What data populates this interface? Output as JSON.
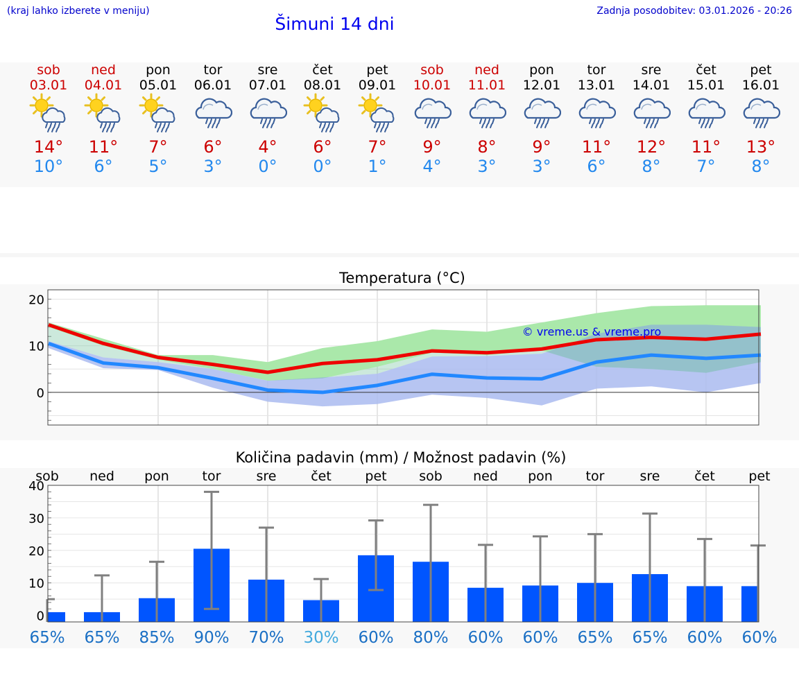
{
  "header": {
    "hint": "(kraj lahko izberete v meniju)",
    "title": "Šimuni 14 dni",
    "updated": "Zadnja posodobitev: 03.01.2026 - 20:26"
  },
  "forecast": [
    {
      "day": "sob",
      "date": "03.01",
      "weekend": true,
      "icon": "sun-cloud-rain-icon",
      "max": "14°",
      "min": "10°"
    },
    {
      "day": "ned",
      "date": "04.01",
      "weekend": true,
      "icon": "sun-cloud-rain-icon",
      "max": "11°",
      "min": "6°"
    },
    {
      "day": "pon",
      "date": "05.01",
      "weekend": false,
      "icon": "sun-cloud-rain-icon",
      "max": "7°",
      "min": "5°"
    },
    {
      "day": "tor",
      "date": "06.01",
      "weekend": false,
      "icon": "cloud-rain-icon",
      "max": "6°",
      "min": "3°"
    },
    {
      "day": "sre",
      "date": "07.01",
      "weekend": false,
      "icon": "cloud-rain-icon",
      "max": "4°",
      "min": "0°"
    },
    {
      "day": "čet",
      "date": "08.01",
      "weekend": false,
      "icon": "sun-cloud-rain-icon",
      "max": "6°",
      "min": "0°"
    },
    {
      "day": "pet",
      "date": "09.01",
      "weekend": false,
      "icon": "sun-cloud-rain-icon",
      "max": "7°",
      "min": "1°"
    },
    {
      "day": "sob",
      "date": "10.01",
      "weekend": true,
      "icon": "cloud-rain-icon",
      "max": "9°",
      "min": "4°"
    },
    {
      "day": "ned",
      "date": "11.01",
      "weekend": true,
      "icon": "cloud-rain-icon",
      "max": "8°",
      "min": "3°"
    },
    {
      "day": "pon",
      "date": "12.01",
      "weekend": false,
      "icon": "cloud-rain-icon",
      "max": "9°",
      "min": "3°"
    },
    {
      "day": "tor",
      "date": "13.01",
      "weekend": false,
      "icon": "cloud-rain-icon",
      "max": "11°",
      "min": "6°"
    },
    {
      "day": "sre",
      "date": "14.01",
      "weekend": false,
      "icon": "cloud-rain-icon",
      "max": "12°",
      "min": "8°"
    },
    {
      "day": "čet",
      "date": "15.01",
      "weekend": false,
      "icon": "cloud-rain-icon",
      "max": "11°",
      "min": "7°"
    },
    {
      "day": "pet",
      "date": "16.01",
      "weekend": false,
      "icon": "cloud-rain-icon",
      "max": "13°",
      "min": "8°"
    }
  ],
  "colors": {
    "weekend": "#cc0000",
    "weekday": "#000000",
    "max_temp": "#cc0000",
    "min_temp": "#2288ee",
    "max_line": "#ee0000",
    "min_line": "#2288ff",
    "max_band": "#aae8aa",
    "min_band": "#aabbf0",
    "overlap_band": "#80c8a8",
    "bar": "#0055ff",
    "whisker": "#808080",
    "prob": "#1a6fc4",
    "prob_low": "#44aadd"
  },
  "chart_data": [
    {
      "type": "line",
      "title": "Temperatura (°C)",
      "ylim": [
        -7,
        22
      ],
      "yticks": [
        0,
        10,
        20
      ],
      "series": [
        {
          "name": "max",
          "values": [
            14.5,
            10.5,
            7.5,
            6,
            4.3,
            6.2,
            7,
            8.9,
            8.5,
            9.3,
            11.3,
            11.8,
            11.4,
            12.5
          ]
        },
        {
          "name": "min",
          "values": [
            10.5,
            6.3,
            5.3,
            3,
            0.5,
            0,
            1.5,
            3.9,
            3.1,
            2.9,
            6.5,
            8,
            7.3,
            8
          ]
        }
      ],
      "bands": {
        "max_upper": [
          15,
          11.5,
          8,
          8,
          6.5,
          9.5,
          11,
          13.5,
          13,
          15,
          17,
          18.5,
          18.7,
          18.7
        ],
        "max_lower": [
          14,
          10,
          7,
          5,
          2.5,
          3,
          5.5,
          8.5,
          8,
          9,
          5.5,
          5,
          4.2,
          6.5
        ],
        "min_upper": [
          11,
          7.5,
          6.5,
          5,
          2.5,
          3.2,
          4,
          7.7,
          7.8,
          8.3,
          12.6,
          14.5,
          14.5,
          14
        ],
        "min_lower": [
          9.5,
          5.2,
          4.8,
          1,
          -2,
          -3,
          -2.5,
          -0.5,
          -1.2,
          -2.8,
          0.8,
          1.3,
          0,
          2
        ]
      },
      "watermark": "© vreme.us & vreme.pro"
    },
    {
      "type": "bar",
      "title": "Količina padavin (mm) / Možnost padavin (%)",
      "categories": [
        "sob",
        "ned",
        "pon",
        "tor",
        "sre",
        "čet",
        "pet",
        "sob",
        "ned",
        "pon",
        "tor",
        "sre",
        "čet",
        "pet"
      ],
      "ylim": [
        -2,
        40
      ],
      "yticks": [
        0,
        10,
        20,
        30,
        40
      ],
      "values": [
        1,
        1,
        5.3,
        20.5,
        11,
        4.7,
        18.5,
        16.5,
        8.5,
        9.2,
        10,
        12.7,
        9,
        9
      ],
      "err_high": [
        5,
        12.3,
        16.5,
        38,
        27,
        11.2,
        29.2,
        34,
        21.7,
        24.3,
        25,
        31.3,
        23.5,
        21.5
      ],
      "err_low": [
        0,
        0,
        0,
        2,
        0,
        0,
        7.8,
        0,
        0,
        0,
        0,
        0,
        0,
        0
      ],
      "probabilities": [
        "65%",
        "65%",
        "85%",
        "90%",
        "70%",
        "30%",
        "60%",
        "80%",
        "60%",
        "60%",
        "65%",
        "65%",
        "60%",
        "60%"
      ]
    }
  ]
}
